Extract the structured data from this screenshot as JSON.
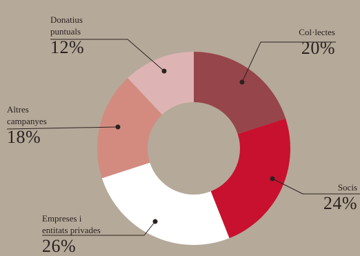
{
  "chart_data": {
    "type": "pie",
    "title": "",
    "slices": [
      {
        "name": "Col·lectes",
        "value": 20,
        "label": "20%",
        "color": "#96454a"
      },
      {
        "name": "Socis",
        "value": 24,
        "label": "24%",
        "color": "#c8112e"
      },
      {
        "name": "Empreses i entitats privades",
        "value": 26,
        "label": "26%",
        "color": "#ffffff"
      },
      {
        "name": "Altres campanyes",
        "value": 18,
        "label": "18%",
        "color": "#d38b80"
      },
      {
        "name": "Donatius puntuals",
        "value": 12,
        "label": "12%",
        "color": "#ddb4b3"
      }
    ],
    "label_lines": {
      "donatius": [
        "Donatius",
        "puntuals"
      ],
      "collectes": [
        "Col·lectes"
      ],
      "altres": [
        "Altres",
        "campanyes"
      ],
      "socis": [
        "Socis"
      ],
      "empreses": [
        "Empreses i",
        "entitats privades"
      ]
    },
    "hole": true
  },
  "colors": {
    "background": "#b5a999",
    "hole": "#b5a999",
    "leader": "#2a2220"
  }
}
